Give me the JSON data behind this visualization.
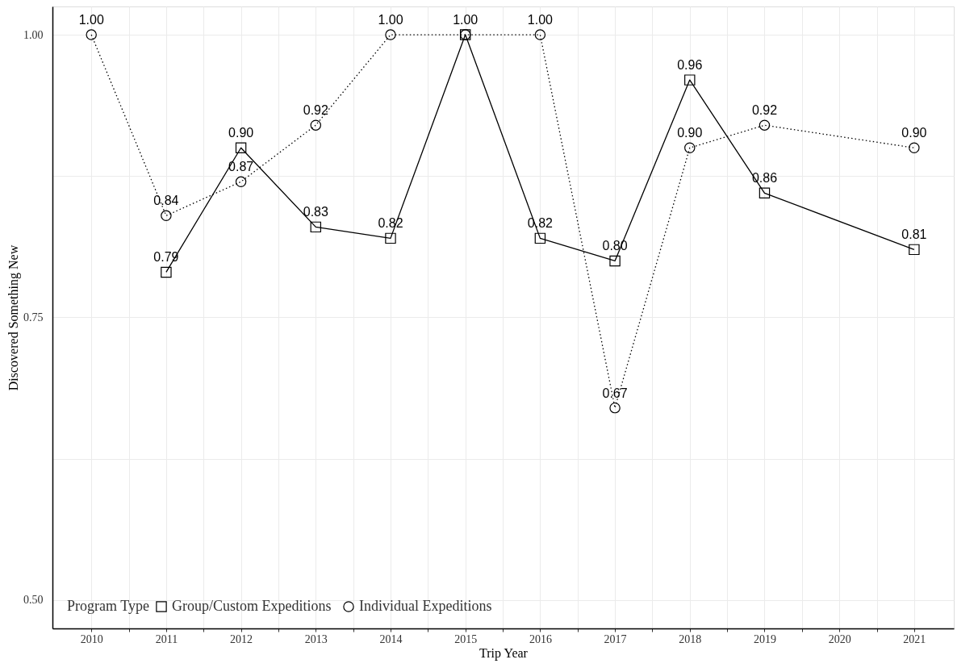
{
  "chart_data": {
    "type": "line",
    "xlabel": "Trip Year",
    "ylabel": "Discovered Something New",
    "legend_title": "Program Type",
    "series": [
      {
        "name": "Group/Custom Expeditions",
        "color": "#000000",
        "marker": "square",
        "line_style": "solid",
        "x": [
          2011,
          2012,
          2013,
          2014,
          2015,
          2016,
          2017,
          2018,
          2019,
          2021
        ],
        "values": [
          0.79,
          0.9,
          0.83,
          0.82,
          1.0,
          0.82,
          0.8,
          0.96,
          0.86,
          0.81
        ],
        "value_labels": [
          "0.79",
          "0.90",
          "0.83",
          "0.82",
          "1.00",
          "0.82",
          "0.80",
          "0.96",
          "0.86",
          "0.81"
        ]
      },
      {
        "name": "Individual Expeditions",
        "color": "#000000",
        "marker": "circle",
        "line_style": "dotted",
        "x": [
          2010,
          2011,
          2012,
          2013,
          2014,
          2015,
          2016,
          2017,
          2018,
          2019,
          2021
        ],
        "values": [
          1.0,
          0.84,
          0.87,
          0.92,
          1.0,
          1.0,
          1.0,
          0.67,
          0.9,
          0.92,
          0.9
        ],
        "value_labels": [
          "1.00",
          "0.84",
          "0.87",
          "0.92",
          "1.00",
          null,
          "1.00",
          "0.67",
          "0.90",
          "0.92",
          "0.90"
        ]
      }
    ],
    "xlim": [
      2009.48,
      2021.53
    ],
    "ylim": [
      0.475,
      1.025
    ],
    "xticks": [
      2010,
      {
        "value": 2010.5,
        "label": null
      },
      2011,
      {
        "value": 2011.5,
        "label": null
      },
      2012,
      {
        "value": 2012.5,
        "label": null
      },
      2013,
      {
        "value": 2013.5,
        "label": null
      },
      2014,
      {
        "value": 2014.5,
        "label": null
      },
      2015,
      {
        "value": 2015.5,
        "label": null
      },
      2016,
      {
        "value": 2016.5,
        "label": null
      },
      2017,
      {
        "value": 2017.5,
        "label": null
      },
      2018,
      {
        "value": 2018.5,
        "label": null
      },
      2019,
      {
        "value": 2019.5,
        "label": null
      },
      2020,
      {
        "value": 2020.5,
        "label": null
      },
      2021
    ],
    "yticks": [
      {
        "value": 0.5,
        "label": "0.50"
      },
      {
        "value": 0.625,
        "label": null
      },
      {
        "value": 0.75,
        "label": "0.75"
      },
      {
        "value": 0.875,
        "label": null
      },
      {
        "value": 1.0,
        "label": "1.00"
      }
    ],
    "grid": true,
    "legend": "bottom left"
  }
}
